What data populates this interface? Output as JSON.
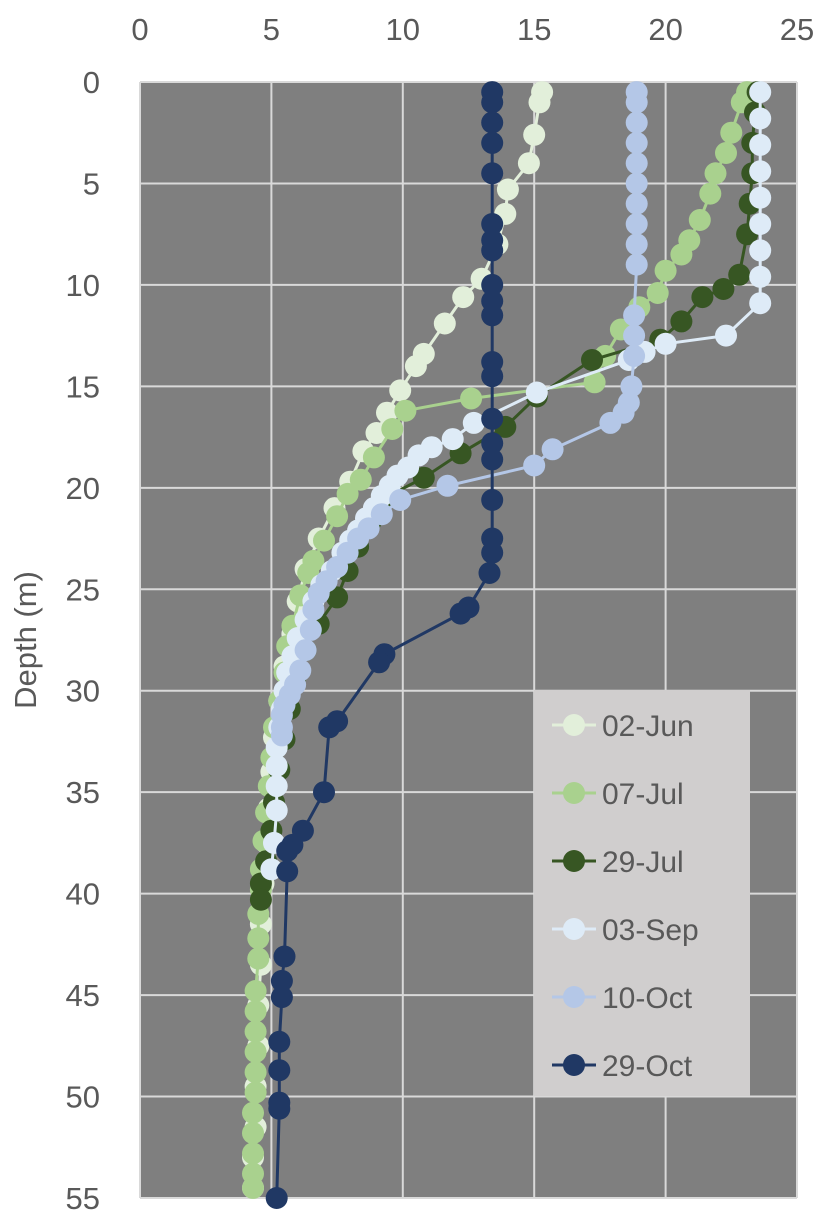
{
  "chart_data": {
    "type": "scatter",
    "title": "",
    "xlabel": "",
    "ylabel": "Depth (m)",
    "xlim": [
      0,
      25
    ],
    "ylim": [
      0,
      55
    ],
    "y_inverted": true,
    "x_axis_position": "top",
    "x_ticks": [
      "0",
      "5",
      "10",
      "15",
      "20",
      "25"
    ],
    "y_ticks": [
      "0",
      "5",
      "10",
      "15",
      "20",
      "25",
      "30",
      "35",
      "40",
      "45",
      "50",
      "55"
    ],
    "grid": true,
    "plot_background": "#7f7f7f",
    "legend_position": "bottom-right",
    "series": [
      {
        "name": "02-Jun",
        "color": "#e2efda",
        "marker": "circle",
        "line": true,
        "points": [
          [
            15.3,
            0.5
          ],
          [
            15.2,
            1.0
          ],
          [
            15.0,
            2.6
          ],
          [
            14.8,
            4.0
          ],
          [
            14.0,
            5.3
          ],
          [
            13.9,
            6.5
          ],
          [
            13.6,
            8.0
          ],
          [
            13.0,
            9.7
          ],
          [
            12.3,
            10.6
          ],
          [
            11.6,
            11.9
          ],
          [
            10.8,
            13.4
          ],
          [
            10.5,
            14.0
          ],
          [
            9.9,
            15.2
          ],
          [
            9.4,
            16.3
          ],
          [
            9.0,
            17.3
          ],
          [
            8.5,
            18.2
          ],
          [
            8.0,
            19.7
          ],
          [
            7.4,
            21.0
          ],
          [
            6.8,
            22.5
          ],
          [
            6.3,
            24.0
          ],
          [
            6.0,
            25.6
          ],
          [
            5.8,
            27.2
          ],
          [
            5.5,
            28.8
          ],
          [
            5.3,
            30.5
          ],
          [
            5.1,
            32.3
          ],
          [
            5.0,
            34.0
          ],
          [
            4.9,
            35.8
          ],
          [
            4.8,
            37.5
          ],
          [
            4.7,
            39.5
          ],
          [
            4.6,
            41.5
          ],
          [
            4.6,
            43.5
          ],
          [
            4.5,
            45.5
          ],
          [
            4.5,
            47.5
          ],
          [
            4.4,
            49.5
          ],
          [
            4.4,
            51.5
          ],
          [
            4.3,
            53.0
          ],
          [
            4.3,
            54.5
          ]
        ]
      },
      {
        "name": "07-Jul",
        "color": "#a9d18e",
        "marker": "circle",
        "line": true,
        "points": [
          [
            23.1,
            0.5
          ],
          [
            22.9,
            1.0
          ],
          [
            22.5,
            2.5
          ],
          [
            22.3,
            3.5
          ],
          [
            21.9,
            4.5
          ],
          [
            21.7,
            5.5
          ],
          [
            21.3,
            6.8
          ],
          [
            20.9,
            7.8
          ],
          [
            20.6,
            8.5
          ],
          [
            20.0,
            9.3
          ],
          [
            19.7,
            10.4
          ],
          [
            19.0,
            11.1
          ],
          [
            18.3,
            12.2
          ],
          [
            17.7,
            13.5
          ],
          [
            17.3,
            14.8
          ],
          [
            12.6,
            15.6
          ],
          [
            10.1,
            16.2
          ],
          [
            9.6,
            17.1
          ],
          [
            8.9,
            18.5
          ],
          [
            8.4,
            19.6
          ],
          [
            7.9,
            20.3
          ],
          [
            7.5,
            21.4
          ],
          [
            7.0,
            22.6
          ],
          [
            6.6,
            23.6
          ],
          [
            6.4,
            24.2
          ],
          [
            6.1,
            25.3
          ],
          [
            5.8,
            26.8
          ],
          [
            5.6,
            27.8
          ],
          [
            5.5,
            29.1
          ],
          [
            5.3,
            30.5
          ],
          [
            5.1,
            31.8
          ],
          [
            5.0,
            33.3
          ],
          [
            4.9,
            34.7
          ],
          [
            4.8,
            36.0
          ],
          [
            4.7,
            37.4
          ],
          [
            4.6,
            38.8
          ],
          [
            4.6,
            39.8
          ],
          [
            4.5,
            41.0
          ],
          [
            4.5,
            42.2
          ],
          [
            4.5,
            43.2
          ],
          [
            4.4,
            44.8
          ],
          [
            4.4,
            45.8
          ],
          [
            4.4,
            46.8
          ],
          [
            4.4,
            47.8
          ],
          [
            4.4,
            48.8
          ],
          [
            4.4,
            49.8
          ],
          [
            4.3,
            50.8
          ],
          [
            4.3,
            51.8
          ],
          [
            4.3,
            52.8
          ],
          [
            4.3,
            53.8
          ],
          [
            4.3,
            54.5
          ]
        ]
      },
      {
        "name": "29-Jul",
        "color": "#375623",
        "marker": "circle",
        "line": true,
        "points": [
          [
            23.5,
            0.5
          ],
          [
            23.4,
            1.5
          ],
          [
            23.3,
            3.0
          ],
          [
            23.3,
            4.5
          ],
          [
            23.2,
            6.0
          ],
          [
            23.1,
            7.5
          ],
          [
            22.8,
            9.5
          ],
          [
            22.2,
            10.2
          ],
          [
            21.4,
            10.6
          ],
          [
            20.6,
            11.8
          ],
          [
            19.8,
            12.7
          ],
          [
            17.2,
            13.7
          ],
          [
            15.1,
            15.5
          ],
          [
            13.9,
            17.0
          ],
          [
            12.2,
            18.3
          ],
          [
            10.8,
            19.5
          ],
          [
            9.3,
            20.5
          ],
          [
            8.8,
            21.6
          ],
          [
            8.3,
            22.9
          ],
          [
            7.9,
            24.1
          ],
          [
            7.5,
            25.4
          ],
          [
            6.8,
            26.7
          ],
          [
            6.3,
            28.0
          ],
          [
            5.9,
            29.4
          ],
          [
            5.7,
            30.9
          ],
          [
            5.5,
            32.4
          ],
          [
            5.3,
            33.9
          ],
          [
            5.1,
            35.5
          ],
          [
            5.0,
            36.9
          ],
          [
            4.8,
            38.4
          ],
          [
            4.6,
            39.5
          ],
          [
            4.6,
            40.3
          ]
        ]
      },
      {
        "name": "03-Sep",
        "color": "#deebf7",
        "marker": "circle",
        "line": true,
        "points": [
          [
            23.6,
            0.5
          ],
          [
            23.6,
            1.8
          ],
          [
            23.6,
            3.1
          ],
          [
            23.6,
            4.4
          ],
          [
            23.6,
            5.7
          ],
          [
            23.6,
            7.0
          ],
          [
            23.6,
            8.3
          ],
          [
            23.6,
            9.6
          ],
          [
            23.6,
            10.9
          ],
          [
            22.3,
            12.5
          ],
          [
            20.0,
            12.9
          ],
          [
            19.2,
            13.3
          ],
          [
            18.6,
            13.7
          ],
          [
            15.1,
            15.3
          ],
          [
            12.7,
            16.8
          ],
          [
            11.9,
            17.6
          ],
          [
            11.1,
            18.0
          ],
          [
            10.6,
            18.4
          ],
          [
            10.2,
            19.0
          ],
          [
            9.8,
            19.4
          ],
          [
            9.5,
            19.9
          ],
          [
            9.2,
            20.4
          ],
          [
            8.9,
            21.0
          ],
          [
            8.6,
            21.5
          ],
          [
            8.3,
            22.1
          ],
          [
            8.0,
            22.6
          ],
          [
            7.7,
            23.2
          ],
          [
            7.3,
            24.1
          ],
          [
            6.9,
            24.8
          ],
          [
            6.6,
            25.6
          ],
          [
            6.3,
            26.5
          ],
          [
            6.0,
            27.4
          ],
          [
            5.8,
            28.3
          ],
          [
            5.6,
            29.1
          ],
          [
            5.5,
            30.0
          ],
          [
            5.4,
            30.9
          ],
          [
            5.3,
            31.8
          ],
          [
            5.2,
            32.8
          ],
          [
            5.2,
            33.7
          ],
          [
            5.2,
            34.7
          ],
          [
            5.2,
            35.9
          ],
          [
            5.1,
            37.5
          ],
          [
            5.0,
            38.8
          ]
        ]
      },
      {
        "name": "10-Oct",
        "color": "#b4c7e7",
        "marker": "circle",
        "line": true,
        "points": [
          [
            18.9,
            0.5
          ],
          [
            18.9,
            1.0
          ],
          [
            18.9,
            2.0
          ],
          [
            18.9,
            3.0
          ],
          [
            18.9,
            4.0
          ],
          [
            18.9,
            5.0
          ],
          [
            18.9,
            6.0
          ],
          [
            18.9,
            7.0
          ],
          [
            18.9,
            8.0
          ],
          [
            18.9,
            9.0
          ],
          [
            18.8,
            11.5
          ],
          [
            18.8,
            12.5
          ],
          [
            18.8,
            13.5
          ],
          [
            18.7,
            15.0
          ],
          [
            18.6,
            15.8
          ],
          [
            18.4,
            16.3
          ],
          [
            17.9,
            16.8
          ],
          [
            15.7,
            18.1
          ],
          [
            15.0,
            18.9
          ],
          [
            11.7,
            19.9
          ],
          [
            9.9,
            20.6
          ],
          [
            9.2,
            21.3
          ],
          [
            8.7,
            22.0
          ],
          [
            8.3,
            22.5
          ],
          [
            7.9,
            23.2
          ],
          [
            7.5,
            23.9
          ],
          [
            7.1,
            24.6
          ],
          [
            6.8,
            25.2
          ],
          [
            6.6,
            26.0
          ],
          [
            6.5,
            27.0
          ],
          [
            6.3,
            28.0
          ],
          [
            6.1,
            29.0
          ],
          [
            5.9,
            29.7
          ],
          [
            5.7,
            30.2
          ],
          [
            5.5,
            30.7
          ],
          [
            5.4,
            31.2
          ],
          [
            5.4,
            31.8
          ],
          [
            5.4,
            32.2
          ]
        ]
      },
      {
        "name": "29-Oct",
        "color": "#203864",
        "marker": "circle",
        "line": true,
        "points": [
          [
            13.4,
            0.5
          ],
          [
            13.4,
            1.0
          ],
          [
            13.4,
            2.0
          ],
          [
            13.4,
            3.0
          ],
          [
            13.4,
            4.5
          ],
          [
            13.4,
            7.0
          ],
          [
            13.4,
            7.8
          ],
          [
            13.4,
            8.3
          ],
          [
            13.4,
            10.0
          ],
          [
            13.4,
            10.8
          ],
          [
            13.4,
            11.5
          ],
          [
            13.4,
            13.8
          ],
          [
            13.4,
            14.5
          ],
          [
            13.4,
            16.6
          ],
          [
            13.4,
            17.8
          ],
          [
            13.4,
            18.6
          ],
          [
            13.4,
            20.6
          ],
          [
            13.4,
            22.5
          ],
          [
            13.4,
            23.2
          ],
          [
            13.3,
            24.2
          ],
          [
            12.5,
            25.9
          ],
          [
            12.2,
            26.2
          ],
          [
            9.3,
            28.2
          ],
          [
            9.1,
            28.6
          ],
          [
            7.5,
            31.5
          ],
          [
            7.2,
            31.8
          ],
          [
            7.0,
            35.0
          ],
          [
            6.2,
            36.9
          ],
          [
            5.8,
            37.6
          ],
          [
            5.6,
            37.9
          ],
          [
            5.6,
            38.9
          ],
          [
            5.5,
            43.1
          ],
          [
            5.4,
            44.3
          ],
          [
            5.4,
            45.1
          ],
          [
            5.3,
            47.3
          ],
          [
            5.3,
            48.7
          ],
          [
            5.3,
            50.3
          ],
          [
            5.3,
            50.6
          ],
          [
            5.2,
            55.0
          ]
        ]
      }
    ]
  }
}
